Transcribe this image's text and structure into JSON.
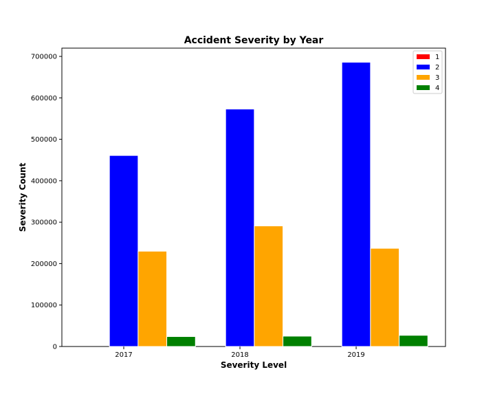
{
  "chart_data": {
    "type": "bar",
    "title": "Accident Severity by Year",
    "xlabel": "Severity Level",
    "ylabel": "Severity Count",
    "categories": [
      "2017",
      "2018",
      "2019"
    ],
    "ylim": [
      0,
      720000
    ],
    "yticks": [
      0,
      100000,
      200000,
      300000,
      400000,
      500000,
      600000,
      700000
    ],
    "ytick_labels": [
      "0",
      "100000",
      "200000",
      "300000",
      "400000",
      "500000",
      "600000",
      "700000"
    ],
    "grid": false,
    "legend_position": "top-right",
    "series": [
      {
        "name": "1",
        "color": "#ff0000",
        "values": [
          0,
          0,
          0
        ]
      },
      {
        "name": "2",
        "color": "#0000ff",
        "values": [
          461000,
          573000,
          686000
        ]
      },
      {
        "name": "3",
        "color": "#ffa500",
        "values": [
          230000,
          291000,
          237000
        ]
      },
      {
        "name": "4",
        "color": "#008000",
        "values": [
          24000,
          25000,
          27000
        ]
      }
    ]
  }
}
